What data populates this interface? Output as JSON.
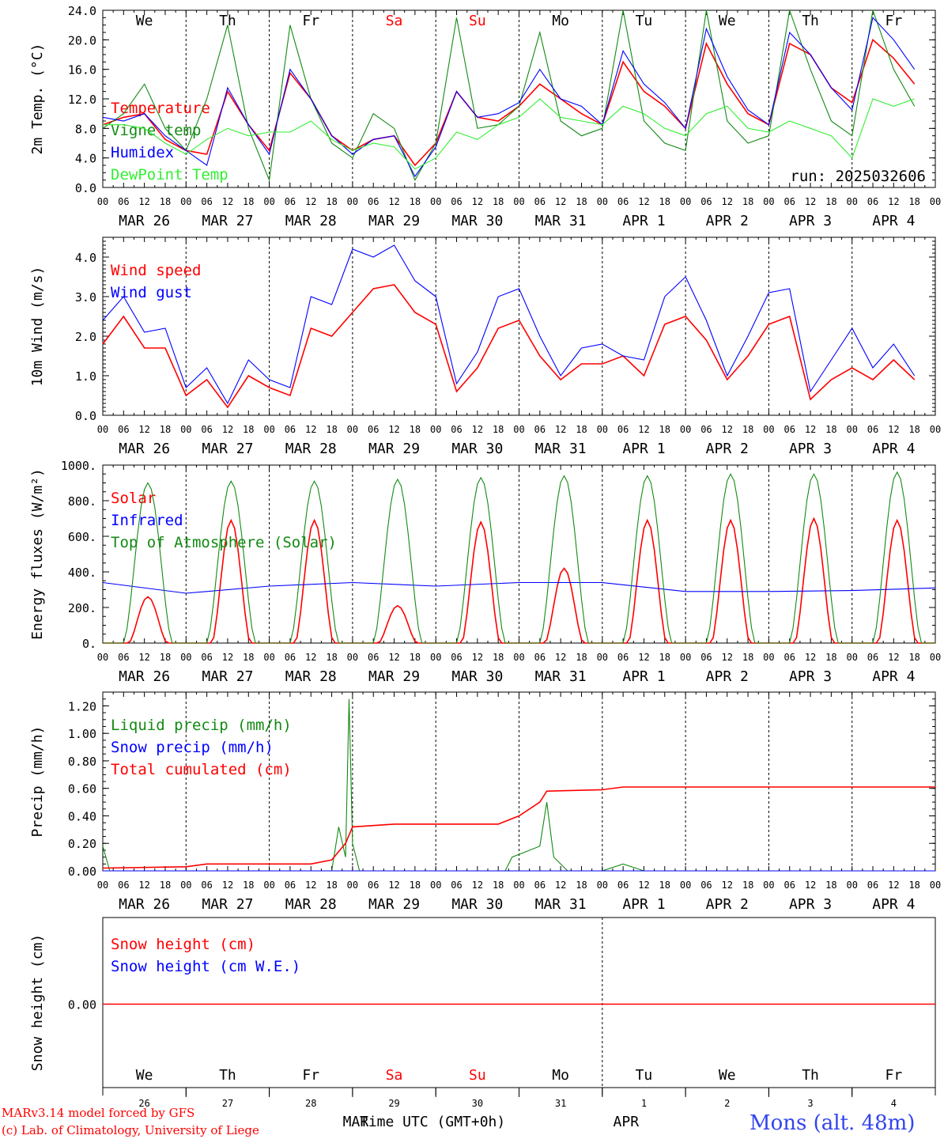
{
  "run_label": "run: 2025032606",
  "days": [
    "We",
    "Th",
    "Fr",
    "Sa",
    "Su",
    "Mo",
    "Tu",
    "We",
    "Th",
    "Fr"
  ],
  "weekend_days": [
    3,
    4
  ],
  "dates": [
    "MAR 26",
    "MAR 27",
    "MAR 28",
    "MAR 29",
    "MAR 30",
    "MAR 31",
    "APR  1",
    "APR  2",
    "APR  3",
    "APR  4"
  ],
  "hour_ticks": [
    "00",
    "06",
    "12",
    "18"
  ],
  "end_hour": "00",
  "bottom_dates": [
    "26",
    "27",
    "28",
    "29",
    "30",
    "31",
    "1",
    "2",
    "3",
    "4"
  ],
  "bottom_month_labels": [
    "MAR",
    "APR"
  ],
  "x_title": "Time UTC (GMT+0h)",
  "footer": {
    "line1": "MARv3.14 model forced by GFS",
    "line2": "(c) Lab. of Climatology, University of Liege"
  },
  "station": "Mons (alt. 48m)",
  "colors": {
    "red": "#ff0000",
    "blue": "#0000ff",
    "green": "#138a13",
    "lime": "#33ee33",
    "axis": "#000000"
  },
  "chart_data": [
    {
      "type": "line",
      "ylabel": "2m Temp. (°C)",
      "ylim": [
        0,
        24
      ],
      "yticks": [
        "0.0",
        "4.0",
        "8.0",
        "12.0",
        "16.0",
        "20.0",
        "24.0"
      ],
      "x_unit": "hours since MAR 26 00 UTC",
      "series": [
        {
          "name": "Temperature",
          "color": "red",
          "x": [
            0,
            6,
            12,
            18,
            24,
            30,
            36,
            42,
            48,
            54,
            60,
            66,
            72,
            78,
            84,
            90,
            96,
            102,
            108,
            114,
            120,
            126,
            132,
            138,
            144,
            150,
            156,
            162,
            168,
            174,
            180,
            186,
            192,
            198,
            204,
            210,
            216,
            222,
            228,
            234
          ],
          "values": [
            8.5,
            9.5,
            10.0,
            6.5,
            5.0,
            4.5,
            13.0,
            8.5,
            5.0,
            15.5,
            12.0,
            7.0,
            5.0,
            6.5,
            7.0,
            3.0,
            6.0,
            13.0,
            9.5,
            9.0,
            11.0,
            14.0,
            12.0,
            10.0,
            8.5,
            17.0,
            13.0,
            11.0,
            8.0,
            19.5,
            14.0,
            10.0,
            8.5,
            19.5,
            18.0,
            13.5,
            11.5,
            20.0,
            17.5,
            14.0
          ]
        },
        {
          "name": "Vigne temp",
          "color": "green",
          "x": [
            0,
            6,
            12,
            18,
            24,
            30,
            36,
            42,
            48,
            54,
            60,
            66,
            72,
            78,
            84,
            90,
            96,
            102,
            108,
            114,
            120,
            126,
            132,
            138,
            144,
            150,
            156,
            162,
            168,
            174,
            180,
            186,
            192,
            198,
            204,
            210,
            216,
            222,
            228,
            234
          ],
          "values": [
            8.0,
            10.0,
            14.0,
            8.0,
            5.0,
            12.0,
            22.0,
            8.0,
            1.0,
            22.0,
            12.0,
            6.0,
            4.0,
            10.0,
            8.0,
            1.0,
            6.0,
            23.0,
            8.0,
            8.5,
            11.0,
            21.0,
            9.0,
            7.0,
            8.0,
            24.0,
            9.0,
            6.0,
            5.0,
            26.0,
            9.0,
            6.0,
            7.0,
            26.0,
            16.0,
            9.0,
            7.0,
            25.0,
            16.0,
            11.0
          ]
        },
        {
          "name": "Humidex",
          "color": "blue",
          "x": [
            0,
            6,
            12,
            18,
            24,
            30,
            36,
            42,
            48,
            54,
            60,
            66,
            72,
            78,
            84,
            90,
            96,
            102,
            108,
            114,
            120,
            126,
            132,
            138,
            144,
            150,
            156,
            162,
            168,
            174,
            180,
            186,
            192,
            198,
            204,
            210,
            216,
            222,
            228,
            234
          ],
          "values": [
            9.5,
            9.0,
            10.0,
            7.0,
            5.0,
            3.0,
            13.5,
            8.5,
            4.5,
            16.0,
            12.0,
            7.0,
            4.5,
            6.5,
            7.0,
            1.5,
            5.5,
            13.0,
            9.5,
            10.0,
            11.5,
            16.0,
            12.0,
            11.0,
            8.5,
            18.5,
            14.0,
            11.5,
            8.0,
            21.5,
            15.0,
            10.5,
            8.5,
            21.0,
            18.0,
            13.5,
            10.5,
            23.0,
            20.0,
            16.0
          ]
        },
        {
          "name": "DewPoint Temp",
          "color": "lime",
          "x": [
            0,
            6,
            12,
            18,
            24,
            30,
            36,
            42,
            48,
            54,
            60,
            66,
            72,
            78,
            84,
            90,
            96,
            102,
            108,
            114,
            120,
            126,
            132,
            138,
            144,
            150,
            156,
            162,
            168,
            174,
            180,
            186,
            192,
            198,
            204,
            210,
            216,
            222,
            228,
            234
          ],
          "values": [
            8.5,
            8.5,
            8.0,
            6.0,
            4.5,
            6.5,
            8.0,
            7.0,
            7.5,
            7.5,
            9.0,
            6.5,
            5.0,
            6.0,
            5.5,
            2.5,
            4.0,
            7.5,
            6.5,
            8.5,
            9.5,
            12.0,
            9.5,
            9.0,
            8.5,
            11.0,
            10.0,
            8.0,
            7.0,
            10.0,
            11.0,
            8.0,
            7.5,
            9.0,
            8.0,
            7.0,
            4.0,
            12.0,
            11.0,
            12.0
          ]
        }
      ]
    },
    {
      "type": "line",
      "ylabel": "10m Wind (m/s)",
      "ylim": [
        0,
        4.5
      ],
      "yticks": [
        "0.0",
        "1.0",
        "2.0",
        "3.0",
        "4.0"
      ],
      "x_unit": "hours since MAR 26 00 UTC",
      "series": [
        {
          "name": "Wind speed",
          "color": "red",
          "x": [
            0,
            6,
            12,
            18,
            24,
            30,
            36,
            42,
            48,
            54,
            60,
            66,
            72,
            78,
            84,
            90,
            96,
            102,
            108,
            114,
            120,
            126,
            132,
            138,
            144,
            150,
            156,
            162,
            168,
            174,
            180,
            186,
            192,
            198,
            204,
            210,
            216,
            222,
            228,
            234
          ],
          "values": [
            1.8,
            2.5,
            1.7,
            1.7,
            0.5,
            0.9,
            0.2,
            1.0,
            0.7,
            0.5,
            2.2,
            2.0,
            2.6,
            3.2,
            3.3,
            2.6,
            2.3,
            0.6,
            1.2,
            2.2,
            2.4,
            1.5,
            0.9,
            1.3,
            1.3,
            1.5,
            1.0,
            2.3,
            2.5,
            1.9,
            0.9,
            1.5,
            2.3,
            2.5,
            0.4,
            0.9,
            1.2,
            0.9,
            1.4,
            0.9
          ]
        },
        {
          "name": "Wind gust",
          "color": "blue",
          "x": [
            0,
            6,
            12,
            18,
            24,
            30,
            36,
            42,
            48,
            54,
            60,
            66,
            72,
            78,
            84,
            90,
            96,
            102,
            108,
            114,
            120,
            126,
            132,
            138,
            144,
            150,
            156,
            162,
            168,
            174,
            180,
            186,
            192,
            198,
            204,
            210,
            216,
            222,
            228,
            234
          ],
          "values": [
            2.4,
            3.0,
            2.1,
            2.2,
            0.7,
            1.2,
            0.3,
            1.4,
            0.9,
            0.7,
            3.0,
            2.8,
            4.2,
            4.0,
            4.3,
            3.4,
            3.0,
            0.8,
            1.6,
            3.0,
            3.2,
            2.0,
            1.0,
            1.7,
            1.8,
            1.5,
            1.4,
            3.0,
            3.5,
            2.4,
            1.0,
            2.0,
            3.1,
            3.2,
            0.6,
            1.4,
            2.2,
            1.2,
            1.8,
            1.0
          ]
        }
      ]
    },
    {
      "type": "line",
      "ylabel": "Energy fluxes (W/m²)",
      "ylim": [
        0,
        1000
      ],
      "yticks": [
        "0.",
        "200.",
        "400.",
        "600.",
        "800.",
        "1000."
      ],
      "x_unit": "hours since MAR 26 00 UTC",
      "series": [
        {
          "name": "Solar",
          "color": "red",
          "peaks_hour": [
            13,
            37,
            61,
            85,
            109,
            133,
            157,
            181,
            205,
            229
          ],
          "peak_values": [
            260,
            690,
            690,
            210,
            680,
            420,
            690,
            690,
            700,
            690
          ]
        },
        {
          "name": "Infrared",
          "color": "blue",
          "x": [
            0,
            24,
            48,
            72,
            96,
            120,
            144,
            168,
            192,
            216,
            240
          ],
          "values": [
            340,
            280,
            320,
            340,
            320,
            340,
            340,
            290,
            290,
            295,
            310
          ]
        },
        {
          "name": "Top of Atmosphere (Solar)",
          "color": "green",
          "peaks_hour": [
            13,
            37,
            61,
            85,
            109,
            133,
            157,
            181,
            205,
            229
          ],
          "peak_values": [
            900,
            910,
            910,
            920,
            930,
            940,
            940,
            950,
            950,
            960
          ]
        }
      ]
    },
    {
      "type": "line",
      "ylabel": "Precip (mm/h)",
      "ylim": [
        0,
        1.3
      ],
      "yticks": [
        "0.00",
        "0.20",
        "0.40",
        "0.60",
        "0.80",
        "1.00",
        "1.20"
      ],
      "x_unit": "hours since MAR 26 00 UTC",
      "series": [
        {
          "name": "Liquid precip (mm/h)",
          "color": "green",
          "x": [
            0,
            2,
            4,
            60,
            66,
            68,
            70,
            71,
            72,
            74,
            100,
            110,
            116,
            118,
            122,
            126,
            128,
            130,
            134,
            144,
            150,
            156,
            240
          ],
          "values": [
            0.18,
            0.0,
            0.0,
            0.0,
            0.0,
            0.32,
            0.1,
            1.25,
            0.2,
            0.0,
            0.0,
            0.0,
            0.0,
            0.1,
            0.14,
            0.18,
            0.5,
            0.1,
            0.0,
            0.0,
            0.05,
            0.0,
            0.0
          ]
        },
        {
          "name": "Snow precip (mm/h)",
          "color": "blue",
          "x": [
            0,
            240
          ],
          "values": [
            0.0,
            0.0
          ]
        },
        {
          "name": "Total cumulated (cm)",
          "color": "red",
          "x": [
            0,
            24,
            30,
            60,
            66,
            70,
            72,
            84,
            96,
            114,
            120,
            126,
            128,
            144,
            150,
            240
          ],
          "values": [
            0.02,
            0.03,
            0.05,
            0.05,
            0.08,
            0.2,
            0.32,
            0.34,
            0.34,
            0.34,
            0.4,
            0.5,
            0.58,
            0.59,
            0.61,
            0.61
          ]
        }
      ]
    },
    {
      "type": "line",
      "ylabel": "Snow height (cm)",
      "yticks": [
        "0.00"
      ],
      "x_unit": "hours since MAR 26 00 UTC",
      "series": [
        {
          "name": "Snow height (cm)",
          "color": "red",
          "x": [
            0,
            240
          ],
          "values": [
            0.0,
            0.0
          ]
        },
        {
          "name": "Snow height (cm W.E.)",
          "color": "blue",
          "x": [
            0,
            240
          ],
          "values": [
            0.0,
            0.0
          ]
        }
      ]
    }
  ]
}
